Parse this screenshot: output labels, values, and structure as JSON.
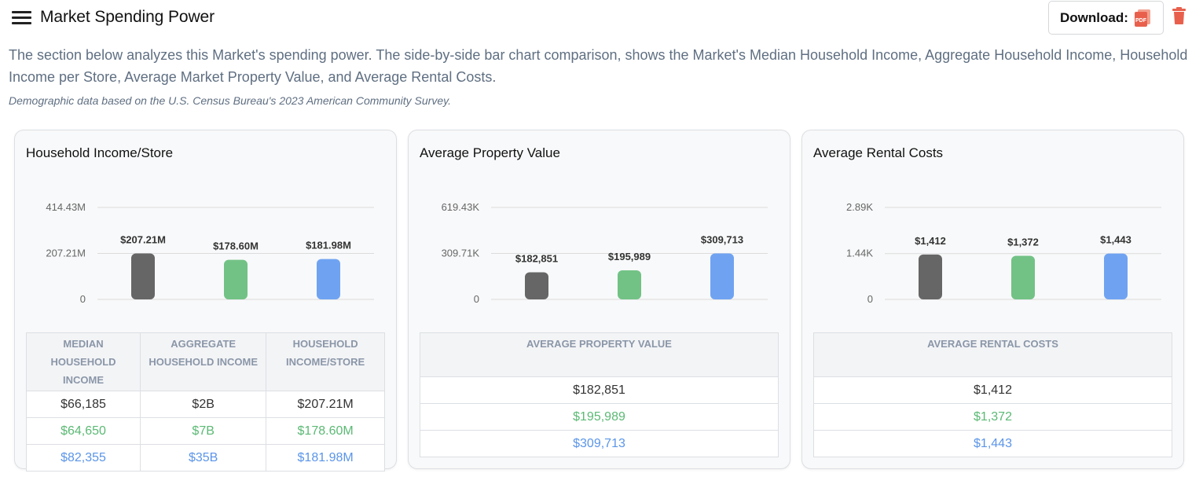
{
  "header": {
    "title": "Market Spending Power",
    "download_label": "Download:",
    "pdf_badge": "PDF"
  },
  "intro": {
    "line1": "The section below analyzes this Market's spending power. The side-by-side bar chart comparison, shows the Market's Median Household Income, Aggregate Household Income, Household",
    "line2": "Income per Store, Average Market Property Value, and Average Rental Costs.",
    "source": "Demographic data based on the U.S. Census Bureau's 2023 American Community Survey."
  },
  "colors": {
    "dark": "#666666",
    "green": "#72c285",
    "blue": "#6fa3f2"
  },
  "cards": [
    {
      "title": "Household Income/Store",
      "table": {
        "headers": [
          "MEDIAN HOUSEHOLD INCOME",
          "AGGREGATE HOUSEHOLD INCOME",
          "HOUSEHOLD INCOME/STORE"
        ],
        "rows": [
          [
            "$66,185",
            "$2B",
            "$207.21M"
          ],
          [
            "$64,650",
            "$7B",
            "$178.60M"
          ],
          [
            "$82,355",
            "$35B",
            "$181.98M"
          ]
        ]
      }
    },
    {
      "title": "Average Property Value",
      "table": {
        "headers": [
          "AVERAGE PROPERTY VALUE"
        ],
        "rows": [
          [
            "$182,851"
          ],
          [
            "$195,989"
          ],
          [
            "$309,713"
          ]
        ]
      }
    },
    {
      "title": "Average Rental Costs",
      "table": {
        "headers": [
          "AVERAGE RENTAL COSTS"
        ],
        "rows": [
          [
            "$1,412"
          ],
          [
            "$1,372"
          ],
          [
            "$1,443"
          ]
        ]
      }
    }
  ],
  "chart_data": [
    {
      "type": "bar",
      "categories": [
        "",
        "",
        ""
      ],
      "values": [
        207210000,
        178600000,
        181980000
      ],
      "data_labels": [
        "$207.21M",
        "$178.60M",
        "$181.98M"
      ],
      "ylim": [
        0,
        414430000
      ],
      "y_ticks": [
        0,
        207210000,
        414430000
      ],
      "y_tick_labels": [
        "0",
        "207.21M",
        "414.43M"
      ],
      "grid": true,
      "bar_colors": [
        "#666666",
        "#72c285",
        "#6fa3f2"
      ]
    },
    {
      "type": "bar",
      "categories": [
        "",
        "",
        ""
      ],
      "values": [
        182851,
        195989,
        309713
      ],
      "data_labels": [
        "$182,851",
        "$195,989",
        "$309,713"
      ],
      "ylim": [
        0,
        619430
      ],
      "y_ticks": [
        0,
        309710,
        619430
      ],
      "y_tick_labels": [
        "0",
        "309.71K",
        "619.43K"
      ],
      "grid": true,
      "bar_colors": [
        "#666666",
        "#72c285",
        "#6fa3f2"
      ]
    },
    {
      "type": "bar",
      "categories": [
        "",
        "",
        ""
      ],
      "values": [
        1412,
        1372,
        1443
      ],
      "data_labels": [
        "$1,412",
        "$1,372",
        "$1,443"
      ],
      "ylim": [
        0,
        2890
      ],
      "y_ticks": [
        0,
        1440,
        2890
      ],
      "y_tick_labels": [
        "0",
        "1.44K",
        "2.89K"
      ],
      "grid": true,
      "bar_colors": [
        "#666666",
        "#72c285",
        "#6fa3f2"
      ]
    }
  ]
}
